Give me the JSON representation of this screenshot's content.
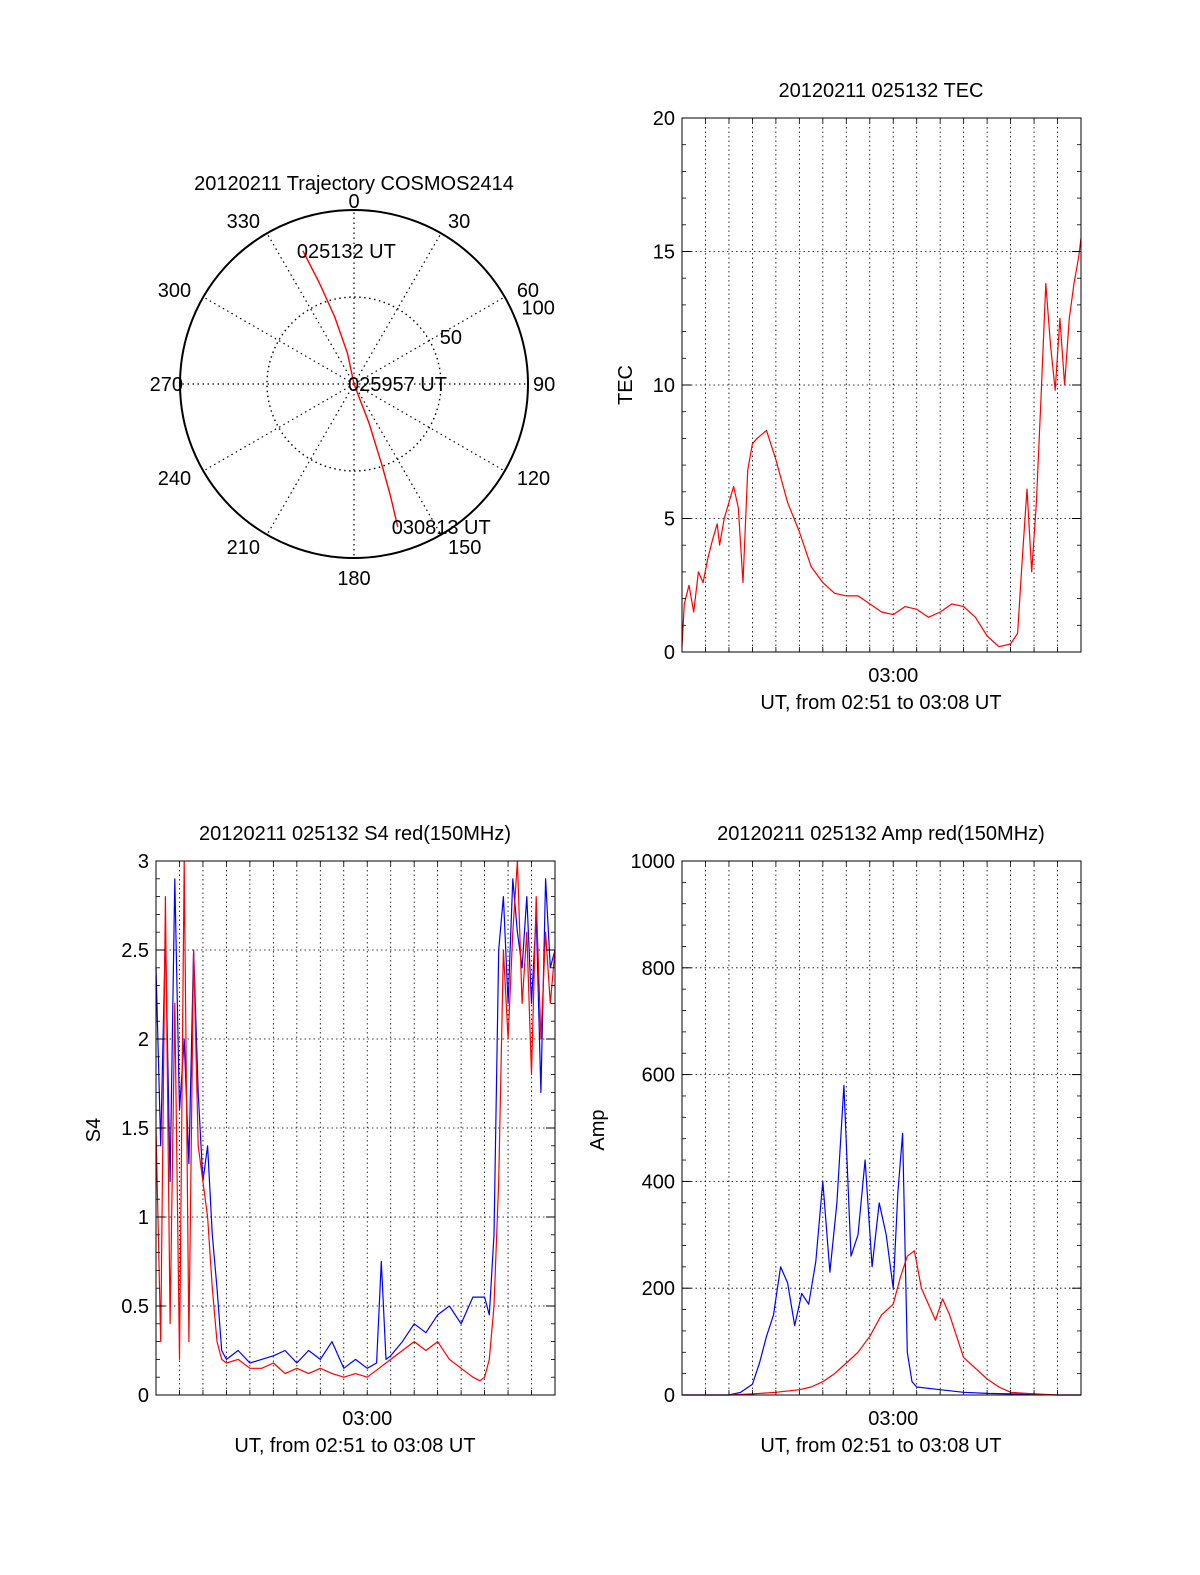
{
  "chart_data": [
    {
      "id": "trajectory",
      "type": "polar",
      "title": "20120211 Trajectory COSMOS2414",
      "azimuth_labels": [
        "0",
        "30",
        "60",
        "90",
        "120",
        "150",
        "180",
        "210",
        "240",
        "270",
        "300",
        "330"
      ],
      "radial_labels": [
        "50",
        "100"
      ],
      "radial_max": 100,
      "grid": true,
      "series": [
        {
          "color": "#ff0000",
          "points": [
            [
              339.0,
              82.0
            ],
            [
              341.0,
              62.0
            ],
            [
              344.0,
              40.0
            ],
            [
              348.0,
              18.0
            ],
            [
              0.0,
              0.0
            ],
            [
              159.0,
              24.0
            ],
            [
              161.0,
              50.0
            ],
            [
              162.0,
              68.0
            ],
            [
              163.0,
              86.0
            ]
          ]
        }
      ],
      "annotations": [
        {
          "text": "025132 UT",
          "az": 339,
          "r": 82
        },
        {
          "text": "025957 UT",
          "az": 0,
          "r": 0
        },
        {
          "text": "030813 UT",
          "az": 163,
          "r": 86
        }
      ]
    },
    {
      "id": "tec",
      "type": "line",
      "title": "20120211 025132 TEC",
      "xlabel": "UT, from 02:51 to 03:08 UT",
      "ylabel": "TEC",
      "x_unit": "minutes after 02:51 UT",
      "xlim": [
        0,
        17
      ],
      "ylim": [
        0,
        20
      ],
      "yticks": [
        "0",
        "5",
        "10",
        "15",
        "20"
      ],
      "xticks": [
        {
          "value": 9,
          "label": "03:00"
        }
      ],
      "grid": true,
      "series": [
        {
          "color": "#ff0000",
          "x": [
            0.0,
            0.1,
            0.3,
            0.5,
            0.7,
            0.9,
            1.1,
            1.3,
            1.5,
            1.6,
            1.8,
            2.0,
            2.2,
            2.4,
            2.6,
            2.8,
            3.0,
            3.2,
            3.6,
            4.0,
            4.5,
            5.0,
            5.5,
            6.0,
            6.5,
            7.0,
            7.5,
            8.0,
            8.5,
            9.0,
            9.5,
            10.0,
            10.5,
            11.0,
            11.5,
            12.0,
            12.5,
            13.0,
            13.5,
            14.0,
            14.3,
            14.5,
            14.7,
            14.9,
            15.1,
            15.3,
            15.5,
            15.7,
            15.9,
            16.1,
            16.3,
            16.5,
            16.7,
            16.9,
            17.0
          ],
          "y": [
            0.2,
            1.8,
            2.5,
            1.5,
            3.0,
            2.6,
            3.5,
            4.2,
            4.8,
            4.0,
            5.0,
            5.6,
            6.2,
            5.4,
            2.6,
            6.8,
            7.8,
            8.0,
            8.3,
            7.2,
            5.6,
            4.5,
            3.2,
            2.6,
            2.2,
            2.1,
            2.1,
            1.8,
            1.5,
            1.4,
            1.7,
            1.6,
            1.3,
            1.5,
            1.8,
            1.7,
            1.3,
            0.6,
            0.2,
            0.3,
            0.7,
            3.5,
            6.1,
            3.0,
            5.6,
            9.6,
            13.8,
            11.5,
            9.8,
            12.5,
            10.0,
            12.5,
            13.8,
            14.8,
            15.5
          ]
        }
      ]
    },
    {
      "id": "s4",
      "type": "line",
      "title": "20120211 025132 S4 red(150MHz)",
      "xlabel": "UT, from 02:51 to 03:08 UT",
      "ylabel": "S4",
      "x_unit": "minutes after 02:51 UT",
      "xlim": [
        0,
        17
      ],
      "ylim": [
        0,
        3
      ],
      "yticks": [
        "0",
        "0.5",
        "1",
        "1.5",
        "2",
        "2.5",
        "3"
      ],
      "xticks": [
        {
          "value": 9,
          "label": "03:00"
        }
      ],
      "grid": true,
      "series": [
        {
          "color": "#0000ff",
          "x": [
            0.0,
            0.2,
            0.4,
            0.6,
            0.8,
            1.0,
            1.2,
            1.4,
            1.6,
            1.8,
            2.0,
            2.2,
            2.4,
            2.6,
            2.8,
            3.0,
            3.5,
            4.0,
            4.5,
            5.0,
            5.5,
            6.0,
            6.5,
            7.0,
            7.5,
            8.0,
            8.5,
            9.0,
            9.4,
            9.6,
            9.8,
            10.0,
            10.5,
            11.0,
            11.5,
            12.0,
            12.5,
            13.0,
            13.5,
            14.0,
            14.2,
            14.4,
            14.6,
            14.8,
            15.0,
            15.2,
            15.4,
            15.6,
            15.8,
            16.0,
            16.2,
            16.4,
            16.6,
            16.8,
            17.0
          ],
          "y": [
            2.4,
            1.4,
            2.6,
            1.2,
            2.9,
            1.6,
            2.0,
            1.3,
            2.5,
            1.7,
            1.2,
            1.4,
            0.9,
            0.6,
            0.25,
            0.2,
            0.25,
            0.18,
            0.2,
            0.22,
            0.25,
            0.18,
            0.25,
            0.2,
            0.3,
            0.15,
            0.2,
            0.15,
            0.18,
            0.75,
            0.2,
            0.22,
            0.3,
            0.4,
            0.35,
            0.45,
            0.5,
            0.4,
            0.55,
            0.55,
            0.45,
            0.9,
            2.5,
            2.8,
            2.2,
            2.9,
            2.6,
            2.4,
            2.8,
            2.2,
            2.7,
            1.7,
            2.9,
            2.4,
            2.5
          ]
        },
        {
          "color": "#ff0000",
          "x": [
            0.0,
            0.2,
            0.4,
            0.6,
            0.8,
            1.0,
            1.2,
            1.4,
            1.6,
            1.8,
            2.0,
            2.2,
            2.4,
            2.6,
            2.8,
            3.0,
            3.5,
            4.0,
            4.5,
            5.0,
            5.5,
            6.0,
            6.5,
            7.0,
            7.5,
            8.0,
            8.5,
            9.0,
            9.5,
            10.0,
            10.5,
            11.0,
            11.5,
            12.0,
            12.5,
            13.0,
            13.5,
            13.8,
            14.0,
            14.2,
            14.4,
            14.6,
            14.8,
            15.0,
            15.2,
            15.4,
            15.6,
            15.8,
            16.0,
            16.2,
            16.4,
            16.6,
            16.8,
            17.0
          ],
          "y": [
            1.5,
            0.3,
            2.8,
            0.4,
            2.2,
            0.2,
            3.0,
            0.3,
            2.5,
            1.4,
            1.2,
            1.0,
            0.6,
            0.3,
            0.2,
            0.18,
            0.2,
            0.15,
            0.15,
            0.18,
            0.12,
            0.15,
            0.12,
            0.15,
            0.12,
            0.1,
            0.12,
            0.1,
            0.15,
            0.2,
            0.25,
            0.3,
            0.25,
            0.3,
            0.2,
            0.15,
            0.1,
            0.08,
            0.1,
            0.2,
            0.5,
            1.2,
            2.5,
            2.0,
            2.6,
            3.0,
            2.2,
            2.6,
            1.8,
            2.8,
            2.0,
            2.6,
            2.2,
            2.5
          ]
        }
      ]
    },
    {
      "id": "amp",
      "type": "line",
      "title": "20120211 025132 Amp red(150MHz)",
      "xlabel": "UT, from 02:51 to 03:08 UT",
      "ylabel": "Amp",
      "x_unit": "minutes after 02:51 UT",
      "xlim": [
        0,
        17
      ],
      "ylim": [
        0,
        1000
      ],
      "yticks": [
        "0",
        "200",
        "400",
        "600",
        "800",
        "1000"
      ],
      "xticks": [
        {
          "value": 9,
          "label": "03:00"
        }
      ],
      "grid": true,
      "series": [
        {
          "color": "#0000ff",
          "x": [
            0.0,
            1.0,
            2.0,
            2.5,
            3.0,
            3.3,
            3.6,
            3.9,
            4.2,
            4.5,
            4.8,
            5.1,
            5.4,
            5.7,
            6.0,
            6.3,
            6.6,
            6.9,
            7.2,
            7.5,
            7.8,
            8.1,
            8.4,
            8.7,
            9.0,
            9.2,
            9.4,
            9.6,
            9.8,
            10.0,
            11.0,
            12.0,
            13.0,
            14.0,
            15.0,
            16.0,
            17.0
          ],
          "y": [
            0,
            0,
            0,
            5,
            20,
            60,
            110,
            150,
            240,
            210,
            130,
            190,
            170,
            250,
            400,
            230,
            360,
            580,
            260,
            300,
            440,
            240,
            360,
            300,
            200,
            380,
            490,
            80,
            25,
            15,
            10,
            5,
            3,
            2,
            1,
            0,
            0
          ]
        },
        {
          "color": "#ff0000",
          "x": [
            0.0,
            2.0,
            3.0,
            4.0,
            5.0,
            5.5,
            6.0,
            6.5,
            7.0,
            7.5,
            8.0,
            8.5,
            9.0,
            9.3,
            9.6,
            9.9,
            10.2,
            10.5,
            10.8,
            11.1,
            11.4,
            11.7,
            12.0,
            12.5,
            13.0,
            13.5,
            14.0,
            15.0,
            16.0,
            17.0
          ],
          "y": [
            0,
            0,
            2,
            5,
            10,
            15,
            25,
            40,
            60,
            80,
            110,
            150,
            170,
            220,
            260,
            270,
            200,
            170,
            140,
            180,
            150,
            110,
            70,
            50,
            30,
            15,
            5,
            2,
            0,
            0
          ]
        }
      ]
    }
  ]
}
